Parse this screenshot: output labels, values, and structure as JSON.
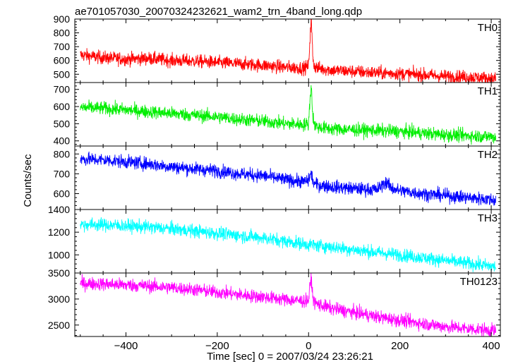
{
  "chart_data": {
    "type": "line",
    "title": "ae701057030_20070324232621_wam2_trn_4band_long.qdp",
    "xlabel": "Time [sec] 0 = 2007/03/24 23:26:21",
    "ylabel": "Counts/sec",
    "xlim": [
      -512,
      420
    ],
    "xticks": [
      -400,
      -200,
      0,
      200,
      400
    ],
    "x_tick_labels": [
      "−400",
      "−200",
      "0",
      "200",
      "400"
    ],
    "grid": false,
    "panels": [
      {
        "name": "TH0",
        "color": "#ff0000",
        "ylim": [
          440,
          900
        ],
        "yticks": [
          500,
          600,
          700,
          800,
          900
        ],
        "x": [
          -500,
          -450,
          -400,
          -350,
          -300,
          -250,
          -200,
          -150,
          -100,
          -50,
          -10,
          0,
          3,
          6,
          9,
          12,
          20,
          50,
          100,
          150,
          200,
          250,
          300,
          350,
          400,
          410
        ],
        "y": [
          640,
          620,
          610,
          615,
          600,
          595,
          585,
          575,
          565,
          550,
          545,
          560,
          760,
          900,
          640,
          560,
          545,
          530,
          520,
          510,
          505,
          495,
          485,
          480,
          470,
          465
        ]
      },
      {
        "name": "TH1",
        "color": "#00ee00",
        "ylim": [
          370,
          740
        ],
        "yticks": [
          400,
          500,
          600,
          700
        ],
        "x": [
          -500,
          -450,
          -400,
          -350,
          -300,
          -250,
          -200,
          -150,
          -100,
          -50,
          -10,
          0,
          3,
          6,
          9,
          12,
          20,
          50,
          100,
          150,
          200,
          250,
          300,
          350,
          400,
          410
        ],
        "y": [
          595,
          590,
          580,
          570,
          560,
          550,
          540,
          525,
          515,
          500,
          495,
          500,
          640,
          720,
          560,
          495,
          480,
          470,
          465,
          460,
          455,
          445,
          435,
          430,
          425,
          420
        ]
      },
      {
        "name": "TH2",
        "color": "#0000ff",
        "ylim": [
          520,
          840
        ],
        "yticks": [
          600,
          700,
          800
        ],
        "x": [
          -500,
          -450,
          -400,
          -350,
          -300,
          -250,
          -200,
          -150,
          -100,
          -50,
          -10,
          0,
          3,
          6,
          9,
          12,
          20,
          50,
          100,
          150,
          160,
          170,
          180,
          200,
          250,
          300,
          350,
          400,
          410
        ],
        "y": [
          775,
          770,
          760,
          750,
          735,
          725,
          715,
          700,
          690,
          670,
          660,
          665,
          690,
          700,
          670,
          650,
          645,
          635,
          625,
          620,
          640,
          660,
          630,
          615,
          600,
          590,
          580,
          570,
          565
        ]
      },
      {
        "name": "TH3",
        "color": "#00ffff",
        "ylim": [
          840,
          1400
        ],
        "yticks": [
          1000,
          1200,
          1400
        ],
        "x": [
          -500,
          -450,
          -400,
          -350,
          -300,
          -250,
          -200,
          -150,
          -100,
          -50,
          0,
          50,
          100,
          150,
          200,
          250,
          300,
          350,
          400,
          410
        ],
        "y": [
          1270,
          1265,
          1255,
          1245,
          1230,
          1210,
          1190,
          1170,
          1150,
          1120,
          1090,
          1070,
          1045,
          1020,
          1000,
          975,
          950,
          925,
          900,
          895
        ]
      },
      {
        "name": "TH0123",
        "color": "#ff00ff",
        "ylim": [
          2280,
          3500
        ],
        "yticks": [
          2500,
          3000,
          3500
        ],
        "x": [
          -500,
          -450,
          -400,
          -350,
          -300,
          -250,
          -200,
          -150,
          -100,
          -50,
          -10,
          0,
          3,
          6,
          9,
          12,
          20,
          50,
          100,
          150,
          200,
          250,
          300,
          350,
          400,
          410
        ],
        "y": [
          3300,
          3290,
          3270,
          3250,
          3220,
          3180,
          3130,
          3080,
          3040,
          2990,
          2960,
          2980,
          3250,
          3400,
          3050,
          2950,
          2900,
          2820,
          2740,
          2660,
          2590,
          2530,
          2470,
          2430,
          2400,
          2390
        ]
      }
    ]
  }
}
